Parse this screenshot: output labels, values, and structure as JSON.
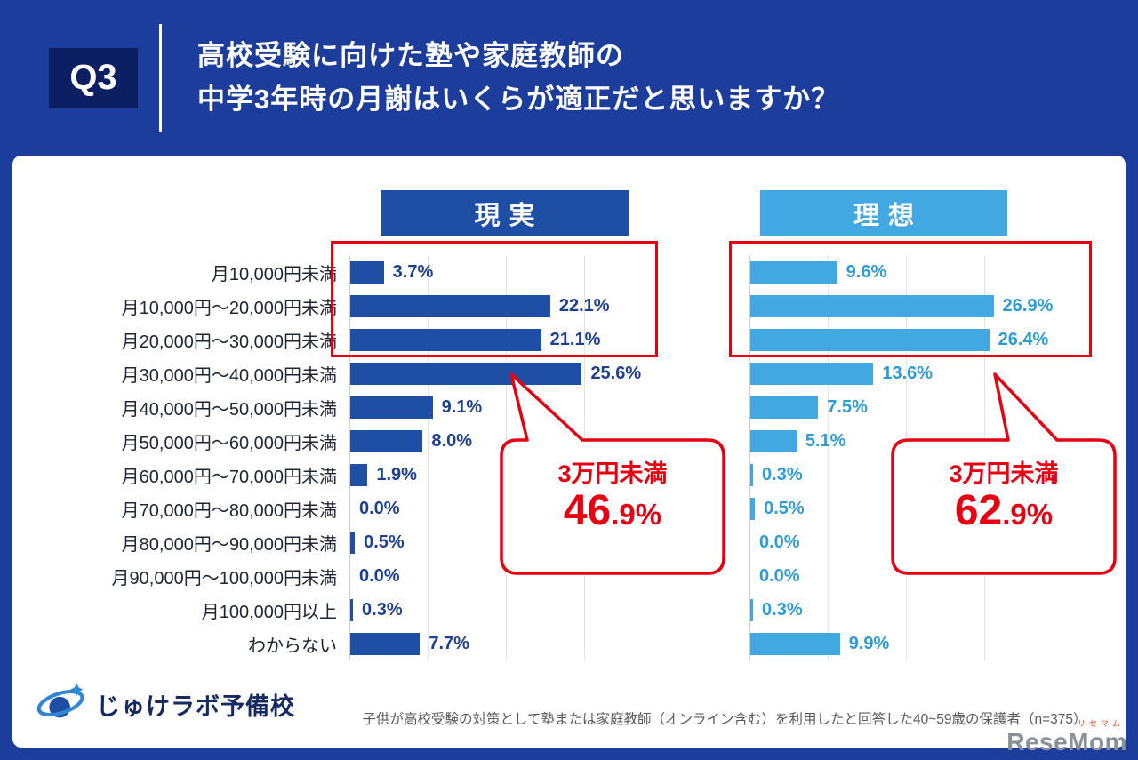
{
  "header": {
    "q_label": "Q3",
    "title_line1": "高校受験に向けた塾や家庭教師の",
    "title_line2": "中学3年時の月謝はいくらが適正だと思いますか？"
  },
  "chart_data": {
    "type": "bar",
    "orientation": "horizontal",
    "unit": "%",
    "xmax": 34.5,
    "grid": true,
    "categories": [
      "月10,000円未満",
      "月10,000円〜20,000円未満",
      "月20,000円〜30,000円未満",
      "月30,000円〜40,000円未満",
      "月40,000円〜50,000円未満",
      "月50,000円〜60,000円未満",
      "月60,000円〜70,000円未満",
      "月70,000円〜80,000円未満",
      "月80,000円〜90,000円未満",
      "月90,000円〜100,000円未満",
      "月100,000円以上",
      "わからない"
    ],
    "series": [
      {
        "name": "現実",
        "color": "#1f4fa5",
        "label_color": "#1c3f8f",
        "values": [
          3.7,
          22.1,
          21.1,
          25.6,
          9.1,
          8.0,
          1.9,
          0.0,
          0.5,
          0.0,
          0.3,
          7.7
        ]
      },
      {
        "name": "理想",
        "color": "#41a8e1",
        "label_color": "#2d9bd6",
        "values": [
          9.6,
          26.9,
          26.4,
          13.6,
          7.5,
          5.1,
          0.3,
          0.5,
          0.0,
          0.0,
          0.3,
          9.9
        ]
      }
    ],
    "callouts": [
      {
        "series": "現実",
        "label": "3万円未満",
        "value": "46.9%"
      },
      {
        "series": "理想",
        "label": "3万円未満",
        "value": "62.9%"
      }
    ],
    "highlight_color": "#e60012"
  },
  "footer": {
    "logo_text": "じゅけラボ予備校",
    "note": "子供が高校受験の対策として塾または家庭教師（オンライン含む）を利用したと回答した40~59歳の保護者（n=375）",
    "watermark_small": "リセマム",
    "watermark": "ReseMom"
  }
}
